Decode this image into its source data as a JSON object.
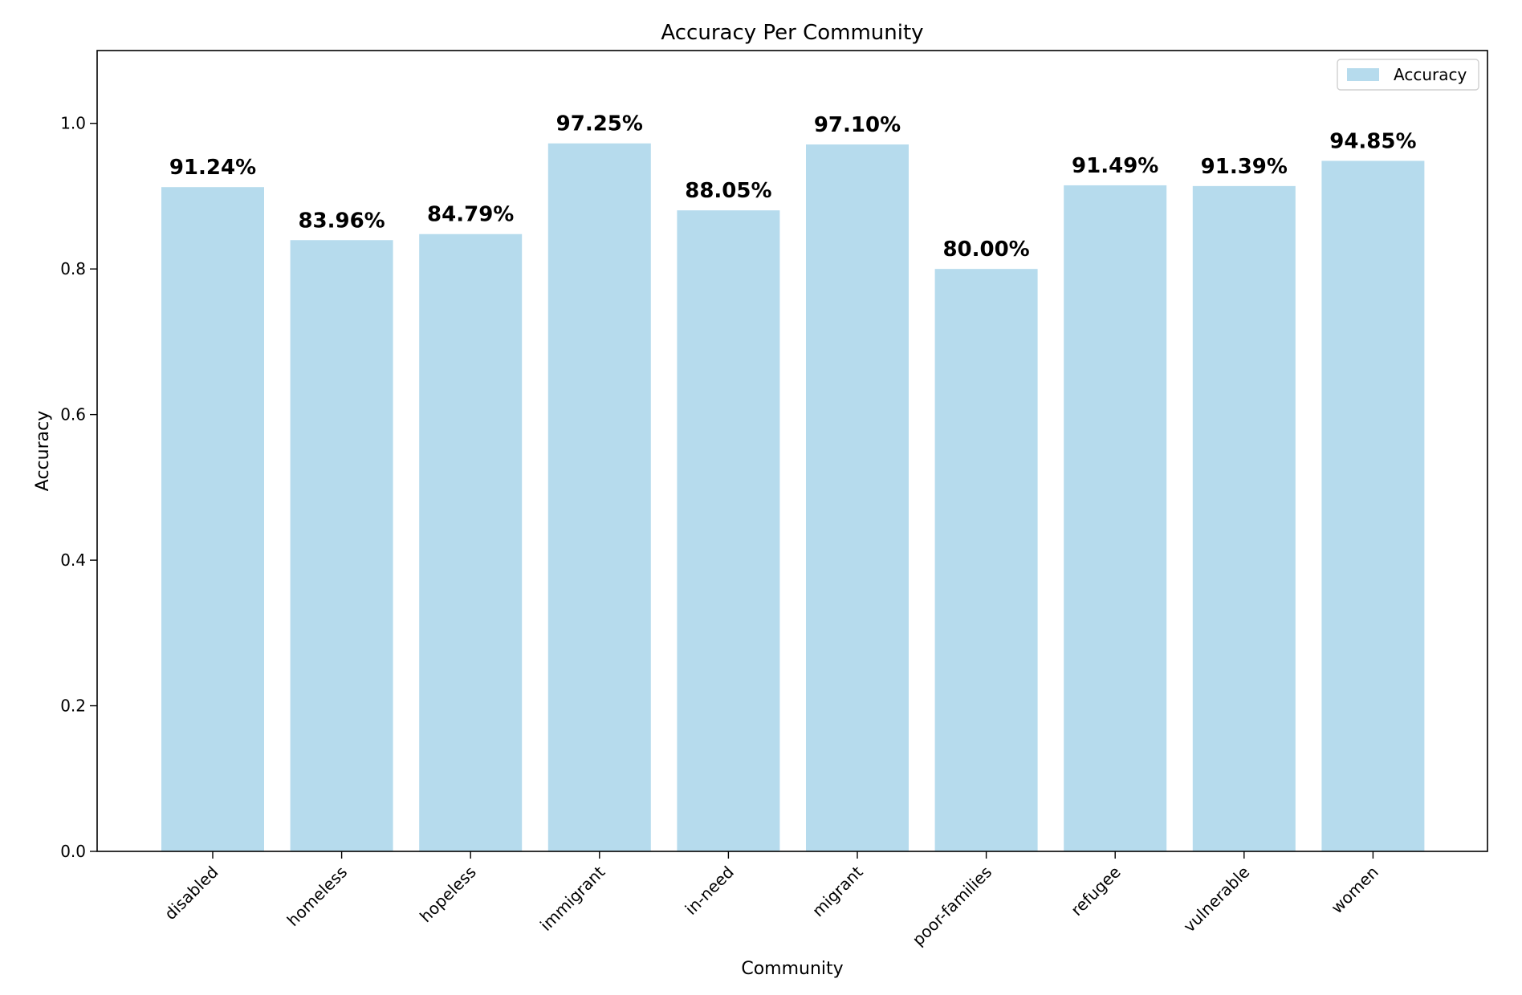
{
  "chart_data": {
    "type": "bar",
    "title": "Accuracy Per Community",
    "xlabel": "Community",
    "ylabel": "Accuracy",
    "ylim": [
      0,
      1.1
    ],
    "yticks": [
      "0.0",
      "0.2",
      "0.4",
      "0.6",
      "0.8",
      "1.0"
    ],
    "categories": [
      "disabled",
      "homeless",
      "hopeless",
      "immigrant",
      "in-need",
      "migrant",
      "poor-families",
      "refugee",
      "vulnerable",
      "women"
    ],
    "series": [
      {
        "name": "Accuracy",
        "color": "#b6dbed",
        "values": [
          0.9124,
          0.8396,
          0.8479,
          0.9725,
          0.8805,
          0.971,
          0.8,
          0.9149,
          0.9139,
          0.9485
        ],
        "labels": [
          "91.24%",
          "83.96%",
          "84.79%",
          "97.25%",
          "88.05%",
          "97.10%",
          "80.00%",
          "91.49%",
          "91.39%",
          "94.85%"
        ]
      }
    ],
    "legend": {
      "position": "top-right",
      "entries": [
        "Accuracy"
      ]
    },
    "grid": false
  }
}
